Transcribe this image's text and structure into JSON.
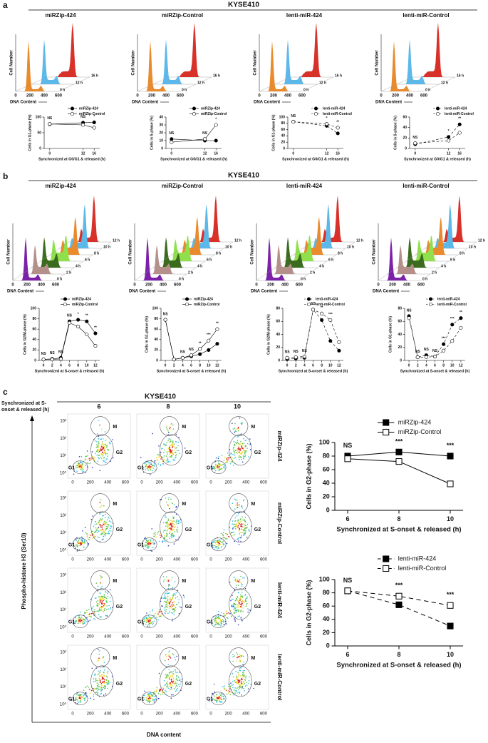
{
  "panel_labels": [
    "a",
    "b",
    "c"
  ],
  "panel_a": {
    "header": "KYSE410",
    "titles": [
      "miRZip-424",
      "miRZip-Control",
      "lenti-miR-424",
      "lenti-miR-Control"
    ],
    "times": [
      "16 h",
      "12 h",
      "0 h"
    ],
    "colors": [
      "#d8312a",
      "#5db8ea",
      "#e98a2c"
    ]
  },
  "panel_b": {
    "header": "KYSE410",
    "titles": [
      "miRZip-424",
      "miRZip-Control",
      "lenti-miR-424",
      "lenti-miR-Control"
    ],
    "times": [
      "12 h",
      "10 h",
      "8 h",
      "6 h",
      "4 h",
      "2 h",
      "0 h"
    ],
    "colors": [
      "#d8312a",
      "#5db8ea",
      "#e98a2c",
      "#8fe04c",
      "#3b6b1f",
      "#b58f8a",
      "#7b22a8"
    ]
  },
  "histogram_axis": {
    "ylabel": "Cell Number",
    "xlabel": "DNA Content",
    "xticks": [
      "0",
      "200",
      "400",
      "600"
    ]
  },
  "panel_c": {
    "header": "KYSE410",
    "corner_label": [
      "Synchronized at S-",
      "onset & released (h)"
    ],
    "columns": [
      "6",
      "8",
      "10"
    ],
    "rows": [
      "miRZip-424",
      "miRZip-Control",
      "lenti-miR-424",
      "lenti-miR-Control"
    ],
    "ylabel": "Phospho-histone H3 (Ser10)",
    "xlabel": "DNA content",
    "yticks": [
      "10⁰",
      "10¹",
      "10²",
      "10³"
    ],
    "xticks": [
      "0",
      "200",
      "400",
      "600"
    ],
    "gates": [
      "G1",
      "G2",
      "M"
    ]
  },
  "chart_data": [
    {
      "type": "line",
      "ylabel": "Cells in G1-phase (%)",
      "xlabel": "Synchronized at G0/G1 & released (h)",
      "x": [
        0,
        12,
        16
      ],
      "xlim": [
        -2,
        18
      ],
      "xticks": [
        0,
        12,
        16
      ],
      "ylim": [
        0,
        100
      ],
      "yticks": [
        0,
        50,
        100
      ],
      "marker": "circle",
      "series": [
        {
          "name": "miRZip-424",
          "color": "#000000",
          "fill": true,
          "dash": false,
          "values": [
            77,
            82,
            83
          ]
        },
        {
          "name": "miRZip-Control",
          "color": "#000000",
          "fill": false,
          "dash": false,
          "values": [
            78,
            75,
            66
          ]
        }
      ],
      "annotations": [
        "NS",
        "NS",
        "*"
      ]
    },
    {
      "type": "line",
      "ylabel": "Cells in S-phase (%)",
      "xlabel": "Synchronized at G0/G1 & released (h)",
      "x": [
        0,
        12,
        16
      ],
      "xlim": [
        -2,
        18
      ],
      "xticks": [
        0,
        12,
        16
      ],
      "ylim": [
        0,
        40
      ],
      "yticks": [
        0,
        10,
        20,
        30,
        40
      ],
      "marker": "circle",
      "series": [
        {
          "name": "miRZip-424",
          "color": "#000000",
          "fill": true,
          "dash": false,
          "values": [
            12,
            10,
            10
          ]
        },
        {
          "name": "miRZip-Control",
          "color": "#000000",
          "fill": false,
          "dash": false,
          "values": [
            8,
            12,
            30
          ]
        }
      ],
      "annotations": [
        "NS",
        "NS",
        "*"
      ]
    },
    {
      "type": "line",
      "ylabel": "Cells in G1-phase (%)",
      "xlabel": "Synchronized at G0/G1 & released (h)",
      "x": [
        0,
        12,
        16
      ],
      "xlim": [
        -2,
        18
      ],
      "xticks": [
        0,
        12,
        16
      ],
      "ylim": [
        0,
        100
      ],
      "yticks": [
        0,
        20,
        40,
        60,
        80,
        100
      ],
      "marker": "circle",
      "series": [
        {
          "name": "lenti-miR-424",
          "color": "#000000",
          "fill": true,
          "dash": true,
          "values": [
            85,
            72,
            48
          ]
        },
        {
          "name": "lenti-miR-Control",
          "color": "#000000",
          "fill": false,
          "dash": true,
          "values": [
            85,
            78,
            66
          ]
        }
      ],
      "annotations": [
        "NS",
        "*",
        "**"
      ]
    },
    {
      "type": "line",
      "ylabel": "Cells in S-phase (%)",
      "xlabel": "Synchronized at G0/G1 & released (h)",
      "x": [
        0,
        12,
        16
      ],
      "xlim": [
        -2,
        18
      ],
      "xticks": [
        0,
        12,
        16
      ],
      "ylim": [
        0,
        60
      ],
      "yticks": [
        0,
        20,
        40,
        60
      ],
      "marker": "circle",
      "series": [
        {
          "name": "lenti-miR-424",
          "color": "#000000",
          "fill": true,
          "dash": true,
          "values": [
            8,
            22,
            46
          ]
        },
        {
          "name": "lenti-miR-Control",
          "color": "#000000",
          "fill": false,
          "dash": true,
          "values": [
            10,
            15,
            30
          ]
        }
      ],
      "annotations": [
        "NS",
        "*",
        "**"
      ]
    },
    {
      "type": "line",
      "ylabel": "Cells in G2/M-phase (%)",
      "xlabel": "Synchronized at S-onset & released (h)",
      "x": [
        0,
        2,
        4,
        6,
        8,
        10,
        12
      ],
      "xlim": [
        -1,
        13
      ],
      "xticks": [
        0,
        2,
        4,
        6,
        8,
        10,
        12
      ],
      "ylim": [
        0,
        100
      ],
      "yticks": [
        0,
        20,
        40,
        60,
        80,
        100
      ],
      "marker": "circle",
      "series": [
        {
          "name": "miRZip-424",
          "color": "#000000",
          "fill": true,
          "dash": false,
          "values": [
            2,
            3,
            5,
            75,
            78,
            75,
            52
          ]
        },
        {
          "name": "miRZip-Control",
          "color": "#000000",
          "fill": false,
          "dash": false,
          "values": [
            2,
            2,
            3,
            72,
            65,
            50,
            28
          ]
        }
      ],
      "annotations": [
        "NS",
        "NS",
        "NS",
        "NS",
        "*",
        "**",
        "**"
      ]
    },
    {
      "type": "line",
      "ylabel": "Cells in G1-phase (%)",
      "xlabel": "Synchronized at S-onset & released (h)",
      "x": [
        0,
        2,
        4,
        6,
        8,
        10,
        12
      ],
      "xlim": [
        -1,
        13
      ],
      "xticks": [
        0,
        2,
        4,
        6,
        8,
        10,
        12
      ],
      "ylim": [
        0,
        100
      ],
      "yticks": [
        0,
        20,
        40,
        60,
        80,
        100
      ],
      "marker": "circle",
      "series": [
        {
          "name": "miRZip-424",
          "color": "#000000",
          "fill": true,
          "dash": false,
          "values": [
            78,
            2,
            5,
            8,
            12,
            20,
            32
          ]
        },
        {
          "name": "miRZip-Control",
          "color": "#000000",
          "fill": false,
          "dash": false,
          "values": [
            78,
            2,
            5,
            10,
            22,
            38,
            60
          ]
        }
      ],
      "annotations": [
        "NS",
        null,
        "NS",
        "NS",
        "**",
        "***",
        "**"
      ]
    },
    {
      "type": "line",
      "ylabel": "Cells in G2/M-phase (%)",
      "xlabel": "Synchronized at S-onset & released (h)",
      "x": [
        0,
        2,
        4,
        6,
        8,
        10,
        12
      ],
      "xlim": [
        -1,
        13
      ],
      "xticks": [
        0,
        2,
        4,
        6,
        8,
        10,
        12
      ],
      "ylim": [
        0,
        80
      ],
      "yticks": [
        0,
        20,
        40,
        60,
        80
      ],
      "marker": "circle",
      "series": [
        {
          "name": "lenti-miR-424",
          "color": "#000000",
          "fill": true,
          "dash": true,
          "values": [
            2,
            3,
            4,
            78,
            62,
            30,
            15
          ]
        },
        {
          "name": "lenti-miR-Control",
          "color": "#000000",
          "fill": false,
          "dash": true,
          "values": [
            4,
            5,
            6,
            78,
            72,
            62,
            28
          ]
        }
      ],
      "annotations": [
        "NS",
        "NS",
        "NS",
        "NS",
        "**",
        "***",
        null
      ]
    },
    {
      "type": "line",
      "ylabel": "Cells in G1-phase (%)",
      "xlabel": "Synchronized at S-onset & released (h)",
      "x": [
        0,
        2,
        4,
        6,
        8,
        10,
        12
      ],
      "xlim": [
        -1,
        13
      ],
      "xticks": [
        0,
        2,
        4,
        6,
        8,
        10,
        12
      ],
      "ylim": [
        0,
        80
      ],
      "yticks": [
        0,
        20,
        40,
        60,
        80
      ],
      "marker": "circle",
      "series": [
        {
          "name": "lenti-miR-424",
          "color": "#000000",
          "fill": true,
          "dash": true,
          "values": [
            68,
            5,
            8,
            6,
            25,
            55,
            65
          ]
        },
        {
          "name": "lenti-miR-Control",
          "color": "#000000",
          "fill": false,
          "dash": true,
          "values": [
            65,
            5,
            5,
            6,
            15,
            30,
            50
          ]
        }
      ],
      "annotations": [
        "NS",
        "NS",
        "NS",
        "NS",
        "***",
        "***",
        "**"
      ]
    },
    {
      "type": "line",
      "ylabel": "Cells in G2-phase (%)",
      "xlabel": "Synchronized at S-onset & released (h)",
      "x": [
        6,
        8,
        10
      ],
      "xlim": [
        5.5,
        10.5
      ],
      "xticks": [
        6,
        8,
        10
      ],
      "ylim": [
        0,
        100
      ],
      "yticks": [
        0,
        20,
        40,
        60,
        80,
        100
      ],
      "marker": "square",
      "series": [
        {
          "name": "miRZip-424",
          "color": "#000000",
          "fill": true,
          "dash": false,
          "values": [
            80,
            86,
            80
          ]
        },
        {
          "name": "miRZip-Control",
          "color": "#000000",
          "fill": false,
          "dash": false,
          "values": [
            76,
            72,
            39
          ]
        }
      ],
      "annotations": [
        "NS",
        "***",
        "***"
      ]
    },
    {
      "type": "line",
      "ylabel": "Cells in G2-phase (%)",
      "xlabel": "Synchronized at S-onset & released (h)",
      "x": [
        6,
        8,
        10
      ],
      "xlim": [
        5.5,
        10.5
      ],
      "xticks": [
        6,
        8,
        10
      ],
      "ylim": [
        0,
        100
      ],
      "yticks": [
        0,
        20,
        40,
        60,
        80,
        100
      ],
      "marker": "square",
      "series": [
        {
          "name": "lenti-miR-424",
          "color": "#000000",
          "fill": true,
          "dash": true,
          "values": [
            83,
            62,
            30
          ]
        },
        {
          "name": "lenti-miR-Control",
          "color": "#000000",
          "fill": false,
          "dash": true,
          "values": [
            83,
            75,
            61
          ]
        }
      ],
      "annotations": [
        "NS",
        "***",
        "***"
      ]
    }
  ]
}
